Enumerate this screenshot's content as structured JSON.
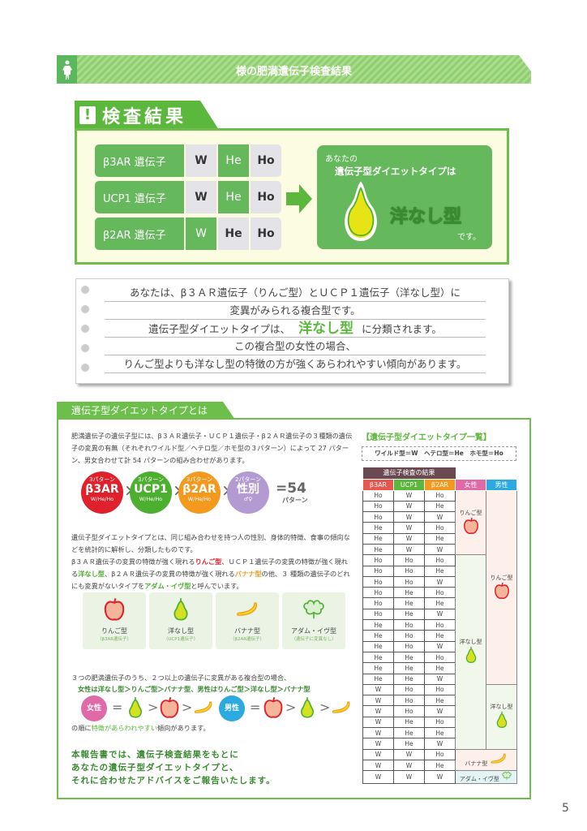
{
  "header": {
    "title": "様の肥満遺伝子検査結果",
    "icon": "person-icon"
  },
  "result": {
    "tab_title": "検査結果",
    "genes": [
      {
        "label": "β3AR 遺伝子",
        "values": [
          "W",
          "He",
          "Ho"
        ],
        "selected": "He"
      },
      {
        "label": "UCP1 遺伝子",
        "values": [
          "W",
          "He",
          "Ho"
        ],
        "selected": "He"
      },
      {
        "label": "β2AR 遺伝子",
        "values": [
          "W",
          "He",
          "Ho"
        ],
        "selected": "W"
      }
    ],
    "pre": "あなたの",
    "lead": "遺伝子型ダイエットタイプは",
    "type": "洋なし型",
    "suffix": "です。",
    "accent": "#66b85c"
  },
  "note": {
    "lines": [
      "あなたは、β３ＡＲ遺伝子（りんご型）とＵＣＰ１遺伝子（洋なし型）に",
      "変異がみられる複合型です。",
      "遺伝子型ダイエットタイプは、",
      "この複合型の女性の場合、",
      "りんご型よりも洋なし型の特徴の方が強くあらわれやすい傾向があります。"
    ],
    "highlight": "洋なし型",
    "after": "に分類されます。"
  },
  "section": {
    "title": "遺伝子型ダイエットタイプとは",
    "intro": "肥満遺伝子の遺伝子型には、β３ＡＲ遺伝子・ＵＣＰ１遺伝子・β２ＡＲ遺伝子の３種類の遺伝子の変異の有無（それぞれワイルド型／ヘテロ型／ホモ型の３パターン）によって 27 パターン、男女合わせて計 54 パターンの組み合わせがあります。",
    "circles": [
      {
        "n": "3パターン",
        "m": "β3AR",
        "s": "W/He/Ho",
        "color": "#e0202a"
      },
      {
        "n": "3パターン",
        "m": "UCP1",
        "s": "W/He/Ho",
        "color": "#4caf30"
      },
      {
        "n": "3パターン",
        "m": "β2AR",
        "s": "W/He/Ho",
        "color": "#f39a1e"
      },
      {
        "n": "2パターン",
        "m": "性別",
        "s": "♂♀",
        "color": "#b39ad0"
      }
    ],
    "times": "×",
    "equals": "=54",
    "equals_unit": "パターン",
    "p2a": "遺伝子型ダイエットタイプとは、同じ組み合わせを持つ人の性別、身体的特徴、食事の傾向などを統計的に解析し、分類したものです。",
    "p2b": [
      "β３ＡＲ遺伝子の変異の特徴が強く現れる",
      "りんご型",
      "、ＵＣＰ１遺伝子の変異の特徴が強く現れる",
      "洋なし型",
      "、β２ＡＲ遺伝子の変異の特徴が強く現れる",
      "バナナ型",
      "の他、３ 種類の遺伝子のどれにも変異がないタイプを",
      "アダム・イヴ型",
      "と呼んでいます。"
    ],
    "fruits": [
      {
        "label": "りんご型",
        "sub": "（β3AR遺伝子）",
        "icon": "apple-icon"
      },
      {
        "label": "洋なし型",
        "sub": "（UCP1遺伝子）",
        "icon": "pear-icon"
      },
      {
        "label": "バナナ型",
        "sub": "（β2AR遺伝子）",
        "icon": "banana-icon"
      },
      {
        "label": "アダム・イヴ型",
        "sub": "（遺伝子に変異なし）",
        "icon": "leaf-icon"
      }
    ],
    "p3": "３つの肥満遺伝子のうち、２つ以上の遺伝子に変異がある複合型の場合、",
    "p3g": "女性は洋なし型＞りんご型＞バナナ型、男性はりんご型＞洋なし型＞バナナ型",
    "female": "女性",
    "male": "男性",
    "eq": "=",
    "gt": ">",
    "p4a": "の順に",
    "p4b": "特徴があらわれやすい",
    "p4c": "傾向があります。",
    "closing": [
      "本報告書では、遺伝子検査結果をもとに",
      "あなたの遺伝子型ダイエットタイプと、",
      "それに合わせたアドバイスをご報告いたします。"
    ]
  },
  "table": {
    "title": "【遺伝子型ダイエットタイプ一覧】",
    "legend": "ワイルド型＝W　ヘテロ型＝He　ホモ型＝Ho",
    "group_header": "遺伝子検査の結果",
    "columns": [
      "β3AR",
      "UCP1",
      "β2AR",
      "女性",
      "男性"
    ],
    "column_colors": [
      "#e8574e",
      "#5cb83c",
      "#f39a1e",
      "#e06aa8",
      "#2ba9e0"
    ],
    "rows": [
      [
        "Ho",
        "W",
        "Ho"
      ],
      [
        "Ho",
        "W",
        "He"
      ],
      [
        "Ho",
        "W",
        "W"
      ],
      [
        "He",
        "W",
        "Ho"
      ],
      [
        "He",
        "W",
        "He"
      ],
      [
        "He",
        "W",
        "W"
      ],
      [
        "Ho",
        "Ho",
        "Ho"
      ],
      [
        "Ho",
        "Ho",
        "He"
      ],
      [
        "Ho",
        "Ho",
        "W"
      ],
      [
        "Ho",
        "He",
        "Ho"
      ],
      [
        "Ho",
        "He",
        "He"
      ],
      [
        "Ho",
        "He",
        "W"
      ],
      [
        "He",
        "Ho",
        "Ho"
      ],
      [
        "He",
        "Ho",
        "He"
      ],
      [
        "He",
        "Ho",
        "W"
      ],
      [
        "He",
        "He",
        "Ho"
      ],
      [
        "He",
        "He",
        "He"
      ],
      [
        "He",
        "He",
        "W"
      ],
      [
        "W",
        "Ho",
        "Ho"
      ],
      [
        "W",
        "Ho",
        "He"
      ],
      [
        "W",
        "Ho",
        "W"
      ],
      [
        "W",
        "He",
        "Ho"
      ],
      [
        "W",
        "He",
        "He"
      ],
      [
        "W",
        "He",
        "W"
      ],
      [
        "W",
        "W",
        "Ho"
      ],
      [
        "W",
        "W",
        "He"
      ],
      [
        "W",
        "W",
        "W"
      ]
    ],
    "female": [
      {
        "label": "りんご型",
        "rows": 6,
        "icon": "apple-icon"
      },
      {
        "label": "洋なし型",
        "rows": 18,
        "icon": "pear-icon"
      }
    ],
    "male": [
      {
        "label": "りんご型",
        "rows": 18,
        "icon": "apple-icon"
      },
      {
        "label": "洋なし型",
        "rows": 6,
        "icon": "pear-icon"
      }
    ],
    "shared": [
      {
        "label": "バナナ型",
        "rows": 2,
        "icon": "banana-icon"
      },
      {
        "label": "アダム・イヴ型",
        "rows": 1,
        "icon": "leaf-icon"
      }
    ]
  },
  "page_number": "5"
}
